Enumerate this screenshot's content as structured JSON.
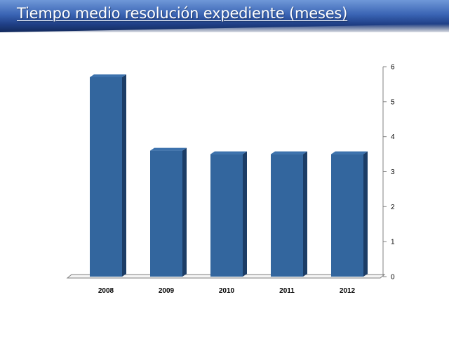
{
  "slide": {
    "title": "Tiempo medio resolución expediente (meses)"
  },
  "colors": {
    "bar_front": "#33669e",
    "bar_side": "#1c3d66",
    "bar_top": "#3d72ad",
    "axis": "#808080"
  },
  "chart_data": {
    "type": "bar",
    "categories": [
      "2008",
      "2009",
      "2010",
      "2011",
      "2012"
    ],
    "values": [
      5.7,
      3.6,
      3.5,
      3.5,
      3.5
    ],
    "ylim": [
      0,
      6
    ],
    "yticks": [
      "0",
      "1",
      "2",
      "3",
      "4",
      "5",
      "6"
    ],
    "y_axis_side": "right",
    "grid": false,
    "legend": false,
    "title": "",
    "xlabel": "",
    "ylabel": ""
  }
}
